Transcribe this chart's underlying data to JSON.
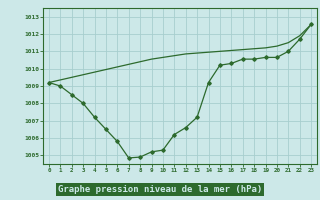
{
  "x": [
    0,
    1,
    2,
    3,
    4,
    5,
    6,
    7,
    8,
    9,
    10,
    11,
    12,
    13,
    14,
    15,
    16,
    17,
    18,
    19,
    20,
    21,
    22,
    23
  ],
  "line_jagged": [
    1009.2,
    1009.0,
    1008.5,
    1008.0,
    1007.2,
    1006.5,
    1005.8,
    1004.85,
    1004.9,
    1005.2,
    1005.3,
    1006.2,
    1006.6,
    1007.2,
    1009.2,
    1010.2,
    1010.3,
    1010.55,
    1010.55,
    1010.65,
    1010.65,
    1011.0,
    1011.7,
    1012.55
  ],
  "line_smooth": [
    1009.2,
    1009.35,
    1009.5,
    1009.65,
    1009.8,
    1009.95,
    1010.1,
    1010.25,
    1010.4,
    1010.55,
    1010.65,
    1010.75,
    1010.85,
    1010.9,
    1010.95,
    1011.0,
    1011.05,
    1011.1,
    1011.15,
    1011.2,
    1011.3,
    1011.5,
    1011.9,
    1012.55
  ],
  "ylim": [
    1004.5,
    1013.5
  ],
  "xlim": [
    -0.5,
    23.5
  ],
  "yticks": [
    1005,
    1006,
    1007,
    1008,
    1009,
    1010,
    1011,
    1012,
    1013
  ],
  "xticks": [
    0,
    1,
    2,
    3,
    4,
    5,
    6,
    7,
    8,
    9,
    10,
    11,
    12,
    13,
    14,
    15,
    16,
    17,
    18,
    19,
    20,
    21,
    22,
    23
  ],
  "line_color": "#2d6a2d",
  "bg_color": "#cce8e8",
  "grid_color": "#a8cece",
  "xlabel": "Graphe pression niveau de la mer (hPa)",
  "xlabel_bg": "#2d6a2d",
  "xlabel_fg": "#cce8e8",
  "title_color": "#2d6a2d"
}
